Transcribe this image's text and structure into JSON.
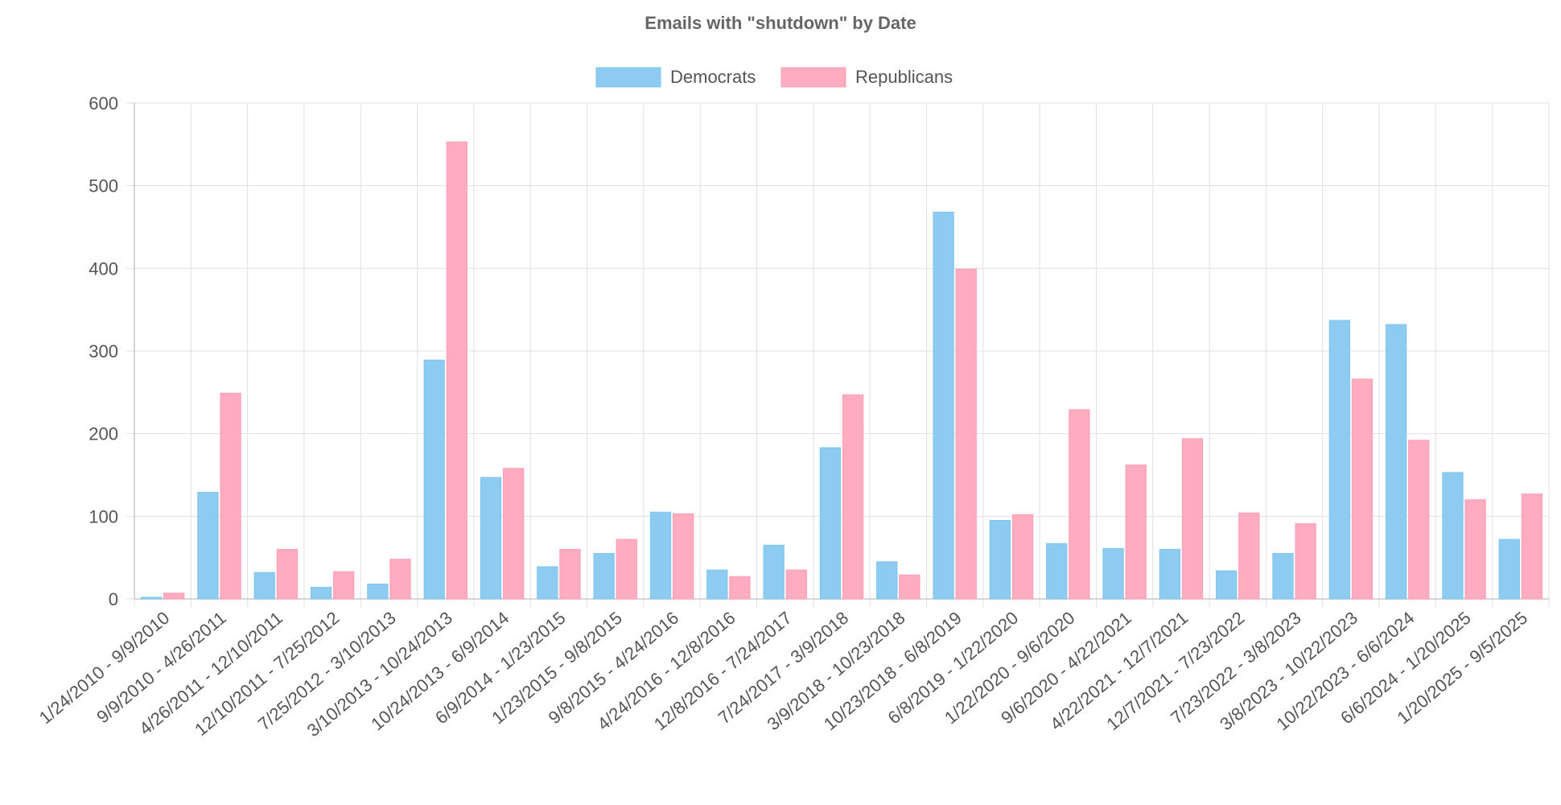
{
  "chart_data": {
    "type": "bar",
    "title": "Emails with \"shutdown\" by Date",
    "xlabel": "",
    "ylabel": "",
    "ylim": [
      0,
      600
    ],
    "yticks": [
      0,
      100,
      200,
      300,
      400,
      500,
      600
    ],
    "grid": true,
    "legend_position": "top-center",
    "categories": [
      "1/24/2010 - 9/9/2010",
      "9/9/2010 - 4/26/2011",
      "4/26/2011 - 12/10/2011",
      "12/10/2011 - 7/25/2012",
      "7/25/2012 - 3/10/2013",
      "3/10/2013 - 10/24/2013",
      "10/24/2013 - 6/9/2014",
      "6/9/2014 - 1/23/2015",
      "1/23/2015 - 9/8/2015",
      "9/8/2015 - 4/24/2016",
      "4/24/2016 - 12/8/2016",
      "12/8/2016 - 7/24/2017",
      "7/24/2017 - 3/9/2018",
      "3/9/2018 - 10/23/2018",
      "10/23/2018 - 6/8/2019",
      "6/8/2019 - 1/22/2020",
      "1/22/2020 - 9/6/2020",
      "9/6/2020 - 4/22/2021",
      "4/22/2021 - 12/7/2021",
      "12/7/2021 - 7/23/2022",
      "7/23/2022 - 3/8/2023",
      "3/8/2023 - 10/22/2023",
      "10/22/2023 - 6/6/2024",
      "6/6/2024 - 1/20/2025",
      "1/20/2025 - 9/5/2025"
    ],
    "series": [
      {
        "name": "Democrats",
        "color": "#8ecbf0",
        "border_color": "#7fc4ee",
        "values": [
          2,
          129,
          32,
          14,
          18,
          289,
          147,
          39,
          55,
          105,
          35,
          65,
          183,
          45,
          468,
          95,
          67,
          61,
          60,
          34,
          55,
          337,
          332,
          153,
          72
        ]
      },
      {
        "name": "Republicans",
        "color": "#ffabc0",
        "border_color": "#ff9fb6",
        "values": [
          7,
          249,
          60,
          33,
          48,
          553,
          158,
          60,
          72,
          103,
          27,
          35,
          247,
          29,
          399,
          102,
          229,
          162,
          194,
          104,
          91,
          266,
          192,
          120,
          127
        ]
      }
    ]
  }
}
